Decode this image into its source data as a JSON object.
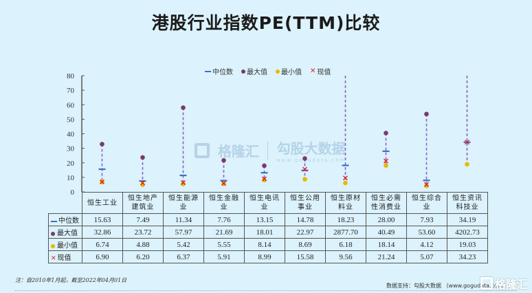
{
  "title": "港股行业指数PE(TTM)比较",
  "legend": {
    "median": "中位数",
    "max": "最大值",
    "min": "最小值",
    "current": "现值"
  },
  "colors": {
    "background": "#dcf2fc",
    "median": "#3c6fc4",
    "max": "#7b3a66",
    "min": "#e8b800",
    "current": "#e02020",
    "range_line": "#8b62c8"
  },
  "chart_data": {
    "type": "range-dot",
    "title": "港股行业指数PE(TTM)比较",
    "xlabel": "",
    "ylabel": "",
    "ylim": [
      0,
      80
    ],
    "yticks": [
      0,
      10,
      20,
      30,
      40,
      50,
      60,
      70,
      80
    ],
    "grid": false,
    "legend_position": "top",
    "categories": [
      "恒生工业",
      "恒生地产建筑业",
      "恒生能源业",
      "恒生金融业",
      "恒生电讯业",
      "恒生公用事业",
      "恒生原材料业",
      "恒生必需性消费业",
      "恒生综合业",
      "恒生资讯科技业"
    ],
    "series": [
      {
        "name": "中位数",
        "marker": "dash",
        "values": [
          15.63,
          7.49,
          11.34,
          7.76,
          13.15,
          14.78,
          18.23,
          28.0,
          7.93,
          34.19
        ]
      },
      {
        "name": "最大值",
        "marker": "dot",
        "values": [
          32.86,
          23.72,
          57.97,
          21.69,
          18.01,
          22.97,
          2877.7,
          40.49,
          53.6,
          4202.73
        ]
      },
      {
        "name": "最小值",
        "marker": "dot",
        "values": [
          6.74,
          4.88,
          5.42,
          5.55,
          8.14,
          8.69,
          6.18,
          18.14,
          4.12,
          19.03
        ]
      },
      {
        "name": "现值",
        "marker": "x",
        "values": [
          6.9,
          6.2,
          6.37,
          5.91,
          8.99,
          15.58,
          9.56,
          21.24,
          5.07,
          34.23
        ]
      }
    ]
  },
  "table": {
    "headers": [
      [
        "恒生工业"
      ],
      [
        "恒生地产",
        "建筑业"
      ],
      [
        "恒生能源",
        "业"
      ],
      [
        "恒生金融",
        "业"
      ],
      [
        "恒生电讯",
        "业"
      ],
      [
        "恒生公用",
        "事业"
      ],
      [
        "恒生原材",
        "料业"
      ],
      [
        "恒生必需",
        "性消费业"
      ],
      [
        "恒生综合",
        "业"
      ],
      [
        "恒生资讯",
        "科技业"
      ]
    ],
    "rows": [
      {
        "label": "中位数",
        "values": [
          "15.63",
          "7.49",
          "11.34",
          "7.76",
          "13.15",
          "14.78",
          "18.23",
          "28.00",
          "7.93",
          "34.19"
        ]
      },
      {
        "label": "最大值",
        "values": [
          "32.86",
          "23.72",
          "57.97",
          "21.69",
          "18.01",
          "22.97",
          "2877.70",
          "40.49",
          "53.60",
          "4202.73"
        ]
      },
      {
        "label": "最小值",
        "values": [
          "6.74",
          "4.88",
          "5.42",
          "5.55",
          "8.14",
          "8.69",
          "6.18",
          "18.14",
          "4.12",
          "19.03"
        ]
      },
      {
        "label": "现值",
        "values": [
          "6.90",
          "6.20",
          "6.37",
          "5.91",
          "8.99",
          "15.58",
          "9.56",
          "21.24",
          "5.07",
          "34.23"
        ]
      }
    ]
  },
  "watermark": {
    "brand": "格隆汇",
    "partner": "勾股大数据",
    "partner_url": "www.gogudata.com"
  },
  "footer": {
    "note": "注：自2010年1月起，截至2022年04月01日",
    "source": "数据支持：勾股大数据 （www.gogudata.com）",
    "corner_logo": "格隆汇"
  }
}
